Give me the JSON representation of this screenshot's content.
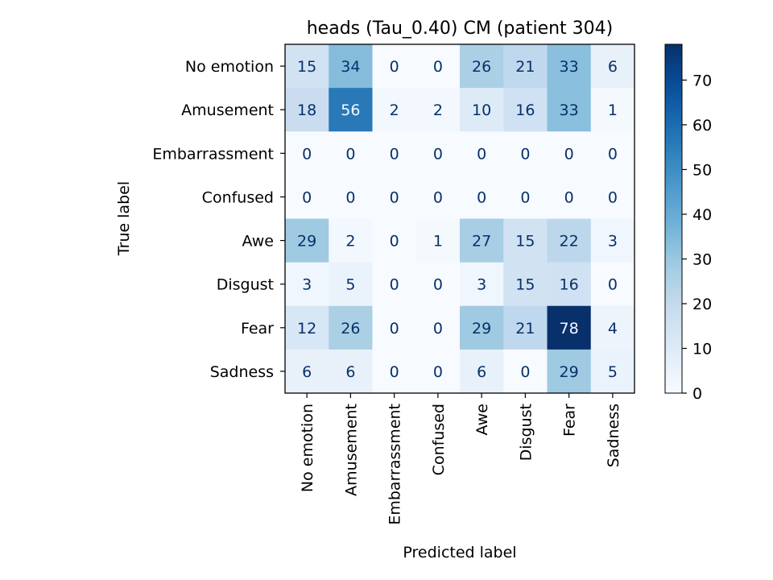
{
  "chart_data": {
    "type": "heatmap",
    "title": "heads (Tau_0.40) CM (patient 304)",
    "xlabel": "Predicted label",
    "ylabel": "True label",
    "x_categories": [
      "No emotion",
      "Amusement",
      "Embarrassment",
      "Confused",
      "Awe",
      "Disgust",
      "Fear",
      "Sadness"
    ],
    "y_categories": [
      "No emotion",
      "Amusement",
      "Embarrassment",
      "Confused",
      "Awe",
      "Disgust",
      "Fear",
      "Sadness"
    ],
    "values": [
      [
        15,
        34,
        0,
        0,
        26,
        21,
        33,
        6
      ],
      [
        18,
        56,
        2,
        2,
        10,
        16,
        33,
        1
      ],
      [
        0,
        0,
        0,
        0,
        0,
        0,
        0,
        0
      ],
      [
        0,
        0,
        0,
        0,
        0,
        0,
        0,
        0
      ],
      [
        29,
        2,
        0,
        1,
        27,
        15,
        22,
        3
      ],
      [
        3,
        5,
        0,
        0,
        3,
        15,
        16,
        0
      ],
      [
        12,
        26,
        0,
        0,
        29,
        21,
        78,
        4
      ],
      [
        6,
        6,
        0,
        0,
        6,
        0,
        29,
        5
      ]
    ],
    "colormap": "Blues",
    "vmin": 0,
    "vmax": 78,
    "colorbar_ticks": [
      0,
      10,
      20,
      30,
      40,
      50,
      60,
      70
    ]
  }
}
